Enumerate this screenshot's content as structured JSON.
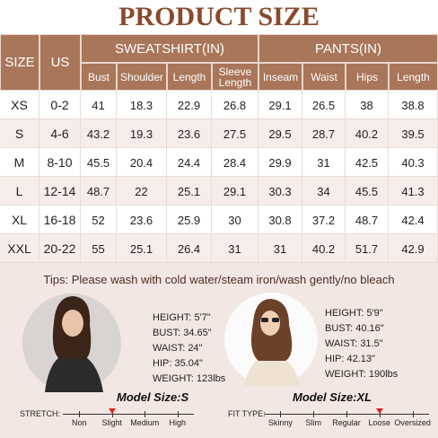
{
  "header": {
    "title": "PRODUCT SIZE"
  },
  "table": {
    "group_headers": [
      "SIZE",
      "US",
      "SWEATSHIRT(IN)",
      "PANTS(IN)"
    ],
    "columns": [
      "Bust",
      "Shoulder",
      "Length",
      "Sleeve Length",
      "Inseam",
      "Waist",
      "Hips",
      "Length"
    ],
    "rows": [
      [
        "XS",
        "0-2",
        41,
        18.3,
        22.9,
        26.8,
        29.1,
        26.5,
        38,
        38.8
      ],
      [
        "S",
        "4-6",
        43.2,
        19.3,
        23.6,
        27.5,
        29.5,
        28.7,
        40.2,
        39.5
      ],
      [
        "M",
        "8-10",
        45.5,
        20.4,
        24.4,
        28.4,
        29.9,
        31,
        42.5,
        40.3
      ],
      [
        "L",
        "12-14",
        48.7,
        22,
        25.1,
        29.1,
        30.3,
        34,
        45.5,
        41.3
      ],
      [
        "XL",
        "16-18",
        52,
        23.6,
        25.9,
        30,
        30.8,
        37.2,
        48.7,
        42.4
      ],
      [
        "XXL",
        "20-22",
        55,
        25.1,
        26.4,
        31,
        31,
        40.2,
        51.7,
        42.9
      ]
    ]
  },
  "tips": "Tips: Please wash with cold water/steam iron/wash gently/no bleach",
  "models": [
    {
      "stats": [
        "HEIGHT: 5'7\"",
        "BUST: 34.65\"",
        "WAIST: 24\"",
        "HIP: 35.04\"",
        "WEIGHT: 123lbs"
      ],
      "size_label": "Model Size:S"
    },
    {
      "stats": [
        "HEIGHT: 5'9\"",
        "BUST: 40.16\"",
        "WAIST: 31.5\"",
        "HIP: 42.13\"",
        "WEIGHT: 190lbs"
      ],
      "size_label": "Model Size:XL"
    }
  ],
  "scales": [
    {
      "label": "STRETCH:",
      "options": [
        "Non",
        "Slight",
        "Medium",
        "High"
      ],
      "selected_index": 1
    },
    {
      "label": "FIT TYPE:",
      "options": [
        "Skinny",
        "Slim",
        "Regular",
        "Loose",
        "Oversized"
      ],
      "selected_index": 3
    }
  ]
}
